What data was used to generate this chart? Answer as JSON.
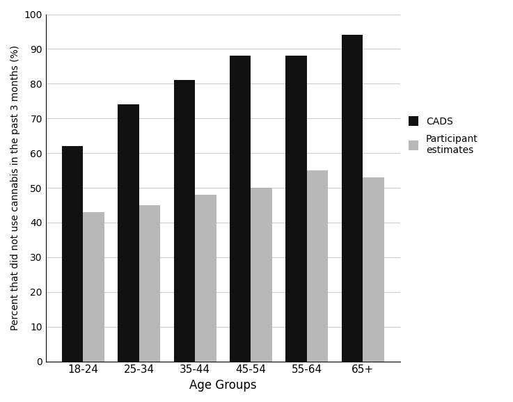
{
  "categories": [
    "18-24",
    "25-34",
    "35-44",
    "45-54",
    "55-64",
    "65+"
  ],
  "cads_values": [
    62,
    74,
    81,
    88,
    88,
    94
  ],
  "participant_values": [
    43,
    45,
    48,
    50,
    55,
    53
  ],
  "cads_color": "#111111",
  "participant_color": "#b8b8b8",
  "xlabel": "Age Groups",
  "ylabel": "Percent that did not use cannabis in the past 3 months (%)",
  "ylim": [
    0,
    100
  ],
  "yticks": [
    0,
    10,
    20,
    30,
    40,
    50,
    60,
    70,
    80,
    90,
    100
  ],
  "legend_labels": [
    "CADS",
    "Participant\nestimates"
  ],
  "bar_width": 0.38,
  "background_color": "#ffffff",
  "grid_color": "#cccccc"
}
